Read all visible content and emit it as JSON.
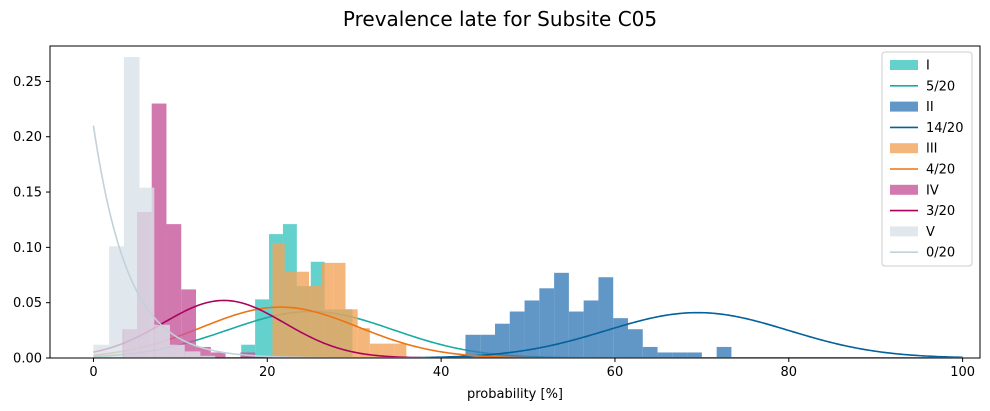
{
  "chart_data": {
    "type": "bar",
    "title": "Prevalence late for Subsite C05",
    "xlabel": "probability [%]",
    "ylabel": "",
    "xlim": [
      -5,
      102
    ],
    "ylim": [
      0,
      0.282
    ],
    "xticks": [
      0,
      20,
      40,
      60,
      80,
      100
    ],
    "yticks": [
      0.0,
      0.05,
      0.1,
      0.15,
      0.2,
      0.25
    ],
    "ytick_labels": [
      "0.00",
      "0.05",
      "0.10",
      "0.15",
      "0.20",
      "0.25"
    ],
    "grid": false,
    "legend_position": "top-right",
    "series": [
      {
        "name": "I",
        "kind": "histogram",
        "color": "#3ec6bf",
        "bins": [
          {
            "x0": 17.0,
            "x1": 18.6,
            "y": 0.012
          },
          {
            "x0": 18.6,
            "x1": 20.2,
            "y": 0.053
          },
          {
            "x0": 20.2,
            "x1": 21.8,
            "y": 0.112
          },
          {
            "x0": 21.8,
            "x1": 23.4,
            "y": 0.121
          },
          {
            "x0": 23.4,
            "x1": 25.0,
            "y": 0.065
          },
          {
            "x0": 25.0,
            "x1": 26.6,
            "y": 0.087
          },
          {
            "x0": 26.6,
            "x1": 28.2,
            "y": 0.044
          },
          {
            "x0": 28.2,
            "x1": 29.8,
            "y": 0.044
          }
        ]
      },
      {
        "name": "5/20",
        "kind": "curve",
        "color": "#1aaba5",
        "curve": {
          "mu": 25,
          "sigma": 9.5,
          "amp": 0.042
        }
      },
      {
        "name": "II",
        "kind": "histogram",
        "color": "#3a7db8",
        "bins": [
          {
            "x0": 42.8,
            "x1": 44.5,
            "y": 0.021
          },
          {
            "x0": 44.5,
            "x1": 46.2,
            "y": 0.021
          },
          {
            "x0": 46.2,
            "x1": 47.9,
            "y": 0.031
          },
          {
            "x0": 47.9,
            "x1": 49.6,
            "y": 0.042
          },
          {
            "x0": 49.6,
            "x1": 51.3,
            "y": 0.052
          },
          {
            "x0": 51.3,
            "x1": 53.0,
            "y": 0.063
          },
          {
            "x0": 53.0,
            "x1": 54.7,
            "y": 0.077
          },
          {
            "x0": 54.7,
            "x1": 56.4,
            "y": 0.042
          },
          {
            "x0": 56.4,
            "x1": 58.1,
            "y": 0.052
          },
          {
            "x0": 58.1,
            "x1": 59.8,
            "y": 0.073
          },
          {
            "x0": 59.8,
            "x1": 61.5,
            "y": 0.036
          },
          {
            "x0": 61.5,
            "x1": 63.2,
            "y": 0.026
          },
          {
            "x0": 63.2,
            "x1": 64.9,
            "y": 0.01
          },
          {
            "x0": 64.9,
            "x1": 66.6,
            "y": 0.005
          },
          {
            "x0": 66.6,
            "x1": 68.3,
            "y": 0.005
          },
          {
            "x0": 68.3,
            "x1": 70.0,
            "y": 0.005
          },
          {
            "x0": 70.0,
            "x1": 71.7,
            "y": 0.0
          },
          {
            "x0": 71.7,
            "x1": 73.4,
            "y": 0.01
          }
        ]
      },
      {
        "name": "14/20",
        "kind": "curve",
        "color": "#03619c",
        "curve": {
          "mu": 69.5,
          "sigma": 10.5,
          "amp": 0.041
        }
      },
      {
        "name": "III",
        "kind": "histogram",
        "color": "#f2a45a",
        "bins": [
          {
            "x0": 20.6,
            "x1": 22.0,
            "y": 0.104
          },
          {
            "x0": 22.0,
            "x1": 23.4,
            "y": 0.078
          },
          {
            "x0": 23.4,
            "x1": 24.8,
            "y": 0.078
          },
          {
            "x0": 24.8,
            "x1": 26.2,
            "y": 0.065
          },
          {
            "x0": 26.2,
            "x1": 27.6,
            "y": 0.086
          },
          {
            "x0": 27.6,
            "x1": 29.0,
            "y": 0.086
          },
          {
            "x0": 29.0,
            "x1": 30.4,
            "y": 0.044
          },
          {
            "x0": 30.4,
            "x1": 31.8,
            "y": 0.027
          },
          {
            "x0": 31.8,
            "x1": 33.2,
            "y": 0.013
          },
          {
            "x0": 33.2,
            "x1": 34.6,
            "y": 0.013
          },
          {
            "x0": 34.6,
            "x1": 36.0,
            "y": 0.013
          }
        ]
      },
      {
        "name": "4/20",
        "kind": "curve",
        "color": "#ec7414",
        "curve": {
          "mu": 21.5,
          "sigma": 9.0,
          "amp": 0.046
        }
      },
      {
        "name": "IV",
        "kind": "histogram",
        "color": "#c6589a",
        "bins": [
          {
            "x0": 3.3,
            "x1": 5.0,
            "y": 0.026
          },
          {
            "x0": 5.0,
            "x1": 6.7,
            "y": 0.132
          },
          {
            "x0": 6.7,
            "x1": 8.4,
            "y": 0.23
          },
          {
            "x0": 8.4,
            "x1": 10.1,
            "y": 0.121
          },
          {
            "x0": 10.1,
            "x1": 11.8,
            "y": 0.062
          },
          {
            "x0": 11.8,
            "x1": 13.5,
            "y": 0.01
          },
          {
            "x0": 13.5,
            "x1": 15.2,
            "y": 0.005
          },
          {
            "x0": 15.2,
            "x1": 16.9,
            "y": 0.0
          },
          {
            "x0": 16.9,
            "x1": 18.6,
            "y": 0.005
          }
        ]
      },
      {
        "name": "3/20",
        "kind": "curve",
        "color": "#a8035f",
        "curve": {
          "mu": 15,
          "sigma": 7.0,
          "amp": 0.052
        }
      },
      {
        "name": "V",
        "kind": "histogram",
        "color": "#d9e2e9",
        "bins": [
          {
            "x0": 0.0,
            "x1": 1.8,
            "y": 0.012
          },
          {
            "x0": 1.8,
            "x1": 3.5,
            "y": 0.101
          },
          {
            "x0": 3.5,
            "x1": 5.3,
            "y": 0.272
          },
          {
            "x0": 5.3,
            "x1": 7.0,
            "y": 0.154
          },
          {
            "x0": 7.0,
            "x1": 8.8,
            "y": 0.03
          },
          {
            "x0": 8.8,
            "x1": 10.5,
            "y": 0.012
          },
          {
            "x0": 10.5,
            "x1": 12.3,
            "y": 0.006
          },
          {
            "x0": 12.3,
            "x1": 14.0,
            "y": 0.002
          }
        ]
      },
      {
        "name": "0/20",
        "kind": "curve",
        "color": "#c2d1da",
        "curve": {
          "type": "exp",
          "amp": 0.21,
          "decay": 4.0
        }
      }
    ]
  }
}
